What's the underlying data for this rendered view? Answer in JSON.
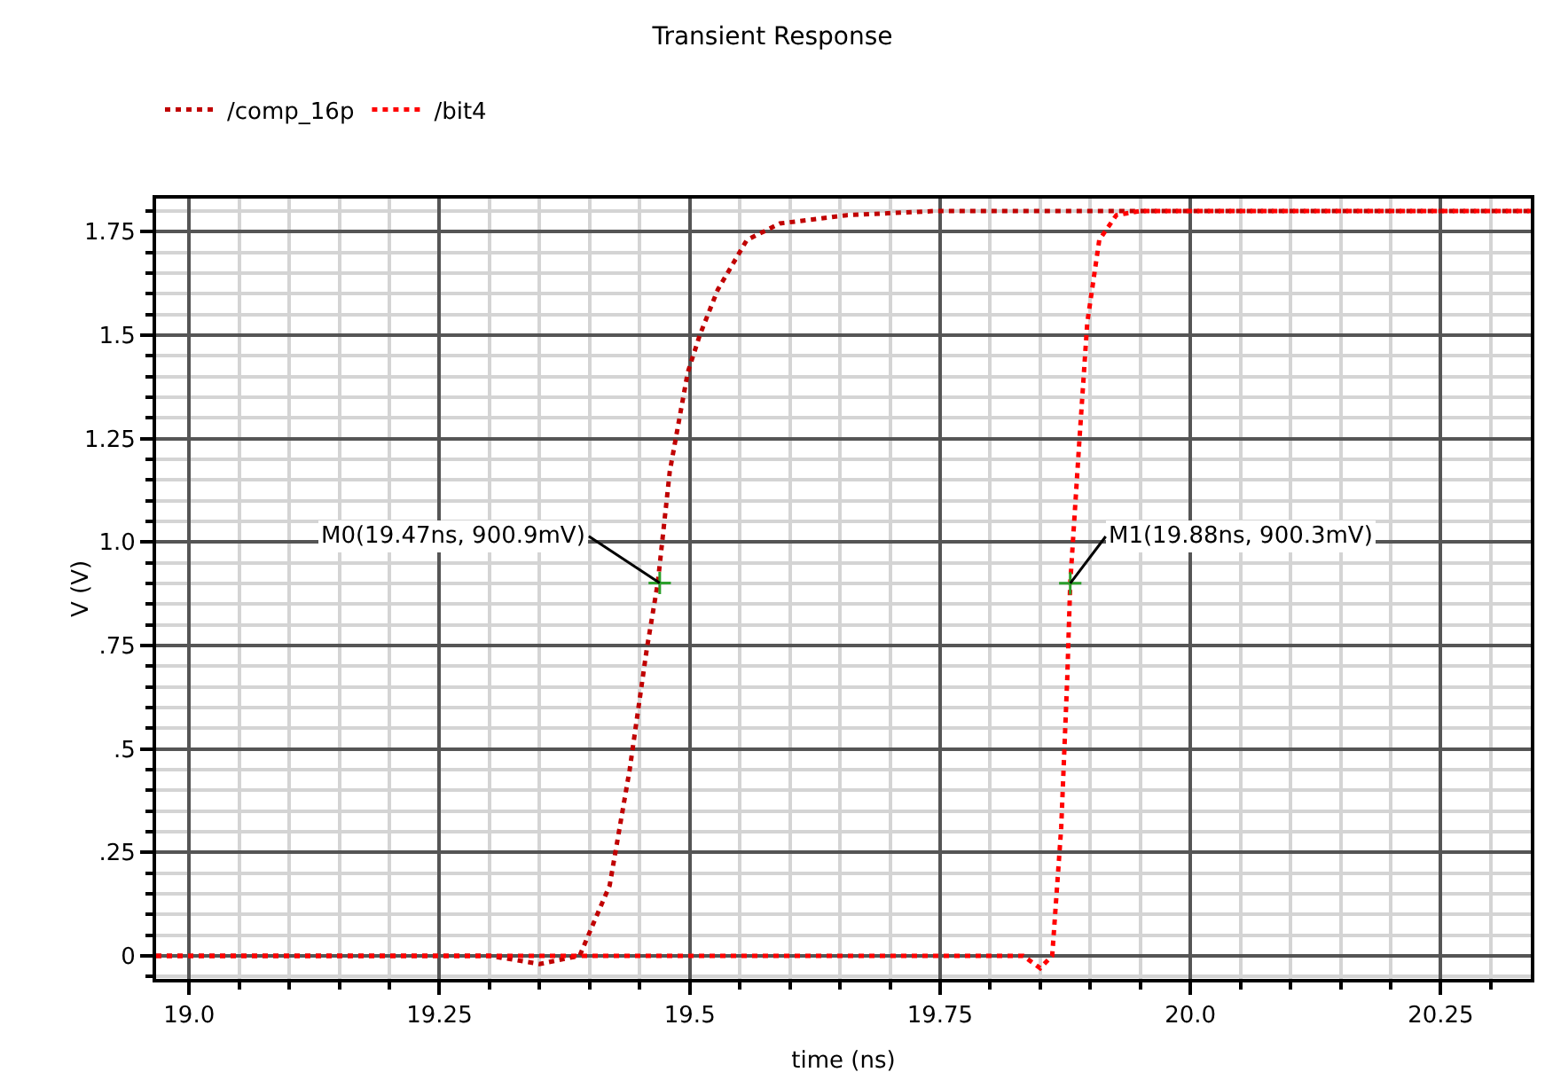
{
  "chart_data": {
    "type": "line",
    "title": "Transient Response",
    "xlabel": "time (ns)",
    "ylabel": "V (V)",
    "xlim": [
      18.967,
      20.34
    ],
    "ylim": [
      -0.056,
      1.83
    ],
    "xticks": [
      {
        "value": 19,
        "label": "19.0"
      },
      19.25,
      19.5,
      19.75,
      {
        "value": 20,
        "label": "20.0"
      },
      20.25
    ],
    "yticks": [
      0,
      {
        "value": 0.25,
        "label": ".25"
      },
      {
        "value": 0.5,
        "label": ".5"
      },
      {
        "value": 0.75,
        "label": ".75"
      },
      {
        "value": 1,
        "label": "1.0"
      },
      1.25,
      1.5,
      1.75
    ],
    "grid": true,
    "legend": "top left",
    "line_style": "dotted",
    "marker": "none",
    "series": [
      {
        "name": "/comp_16p",
        "color": "#c00000",
        "x": [
          18.967,
          19.3,
          19.35,
          19.39,
          19.42,
          19.44,
          19.457,
          19.468,
          19.48,
          19.498,
          19.51,
          19.528,
          19.557,
          19.59,
          19.657,
          19.745,
          20.34
        ],
        "values": [
          0,
          0,
          -0.02,
          0,
          0.17,
          0.45,
          0.74,
          0.9,
          1.17,
          1.41,
          1.5,
          1.61,
          1.73,
          1.77,
          1.79,
          1.8,
          1.8
        ]
      },
      {
        "name": "/bit4",
        "color": "#ff0000",
        "x": [
          18.967,
          19.833,
          19.85,
          19.862,
          19.871,
          19.877,
          19.88,
          19.889,
          19.897,
          19.909,
          19.926,
          19.95,
          20.34
        ],
        "values": [
          0,
          0,
          -0.03,
          0,
          0.31,
          0.67,
          0.9,
          1.24,
          1.53,
          1.73,
          1.79,
          1.8,
          1.8
        ]
      }
    ],
    "annotations": [
      {
        "text": "M0(19.47ns, 900.9mV)",
        "x": 19.47,
        "y": 0.9009
      },
      {
        "text": "M1(19.88ns, 900.3mV)",
        "x": 19.88,
        "y": 0.9003
      }
    ]
  }
}
